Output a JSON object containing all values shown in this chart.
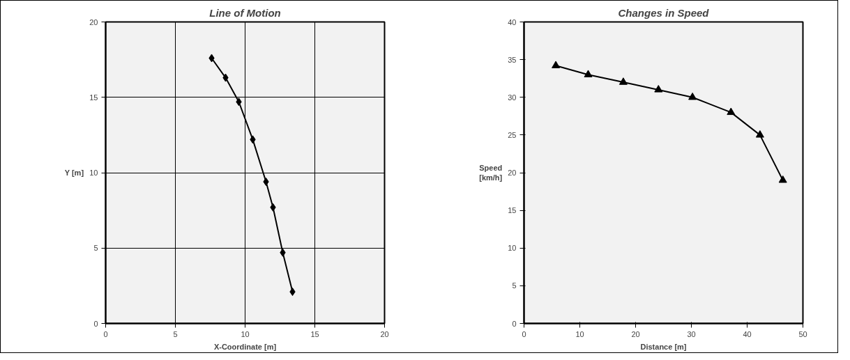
{
  "chart_data": [
    {
      "type": "line",
      "title": "Line of Motion",
      "xlabel": "X-Coordinate [m]",
      "ylabel": "Y [m]",
      "marker": "diamond",
      "grid": true,
      "series": [
        {
          "color": "#000000",
          "x": [
            7.6,
            8.6,
            9.55,
            10.55,
            11.5,
            12.0,
            12.7,
            13.4
          ],
          "values": [
            17.6,
            16.3,
            14.7,
            12.2,
            9.4,
            7.7,
            4.7,
            2.1
          ]
        }
      ],
      "xlim": [
        0,
        20
      ],
      "xticks": [
        0,
        5,
        10,
        15,
        20
      ],
      "ylim": [
        0,
        20
      ],
      "yticks": [
        0,
        5,
        10,
        15,
        20
      ]
    },
    {
      "type": "line",
      "title": "Changes in Speed",
      "xlabel": "Distance [m]",
      "ylabel": "Speed\n[km/h]",
      "marker": "triangle",
      "grid": false,
      "series": [
        {
          "color": "#000000",
          "x": [
            5.7,
            11.5,
            17.8,
            24.1,
            30.2,
            37.1,
            42.3,
            46.4
          ],
          "values": [
            34.2,
            33,
            32,
            31,
            30,
            28,
            25,
            19
          ]
        }
      ],
      "xlim": [
        0,
        50
      ],
      "xticks": [
        0,
        10,
        20,
        30,
        40,
        50
      ],
      "ylim": [
        0,
        40
      ],
      "yticks": [
        0,
        5,
        10,
        15,
        20,
        25,
        30,
        35,
        40
      ]
    }
  ]
}
